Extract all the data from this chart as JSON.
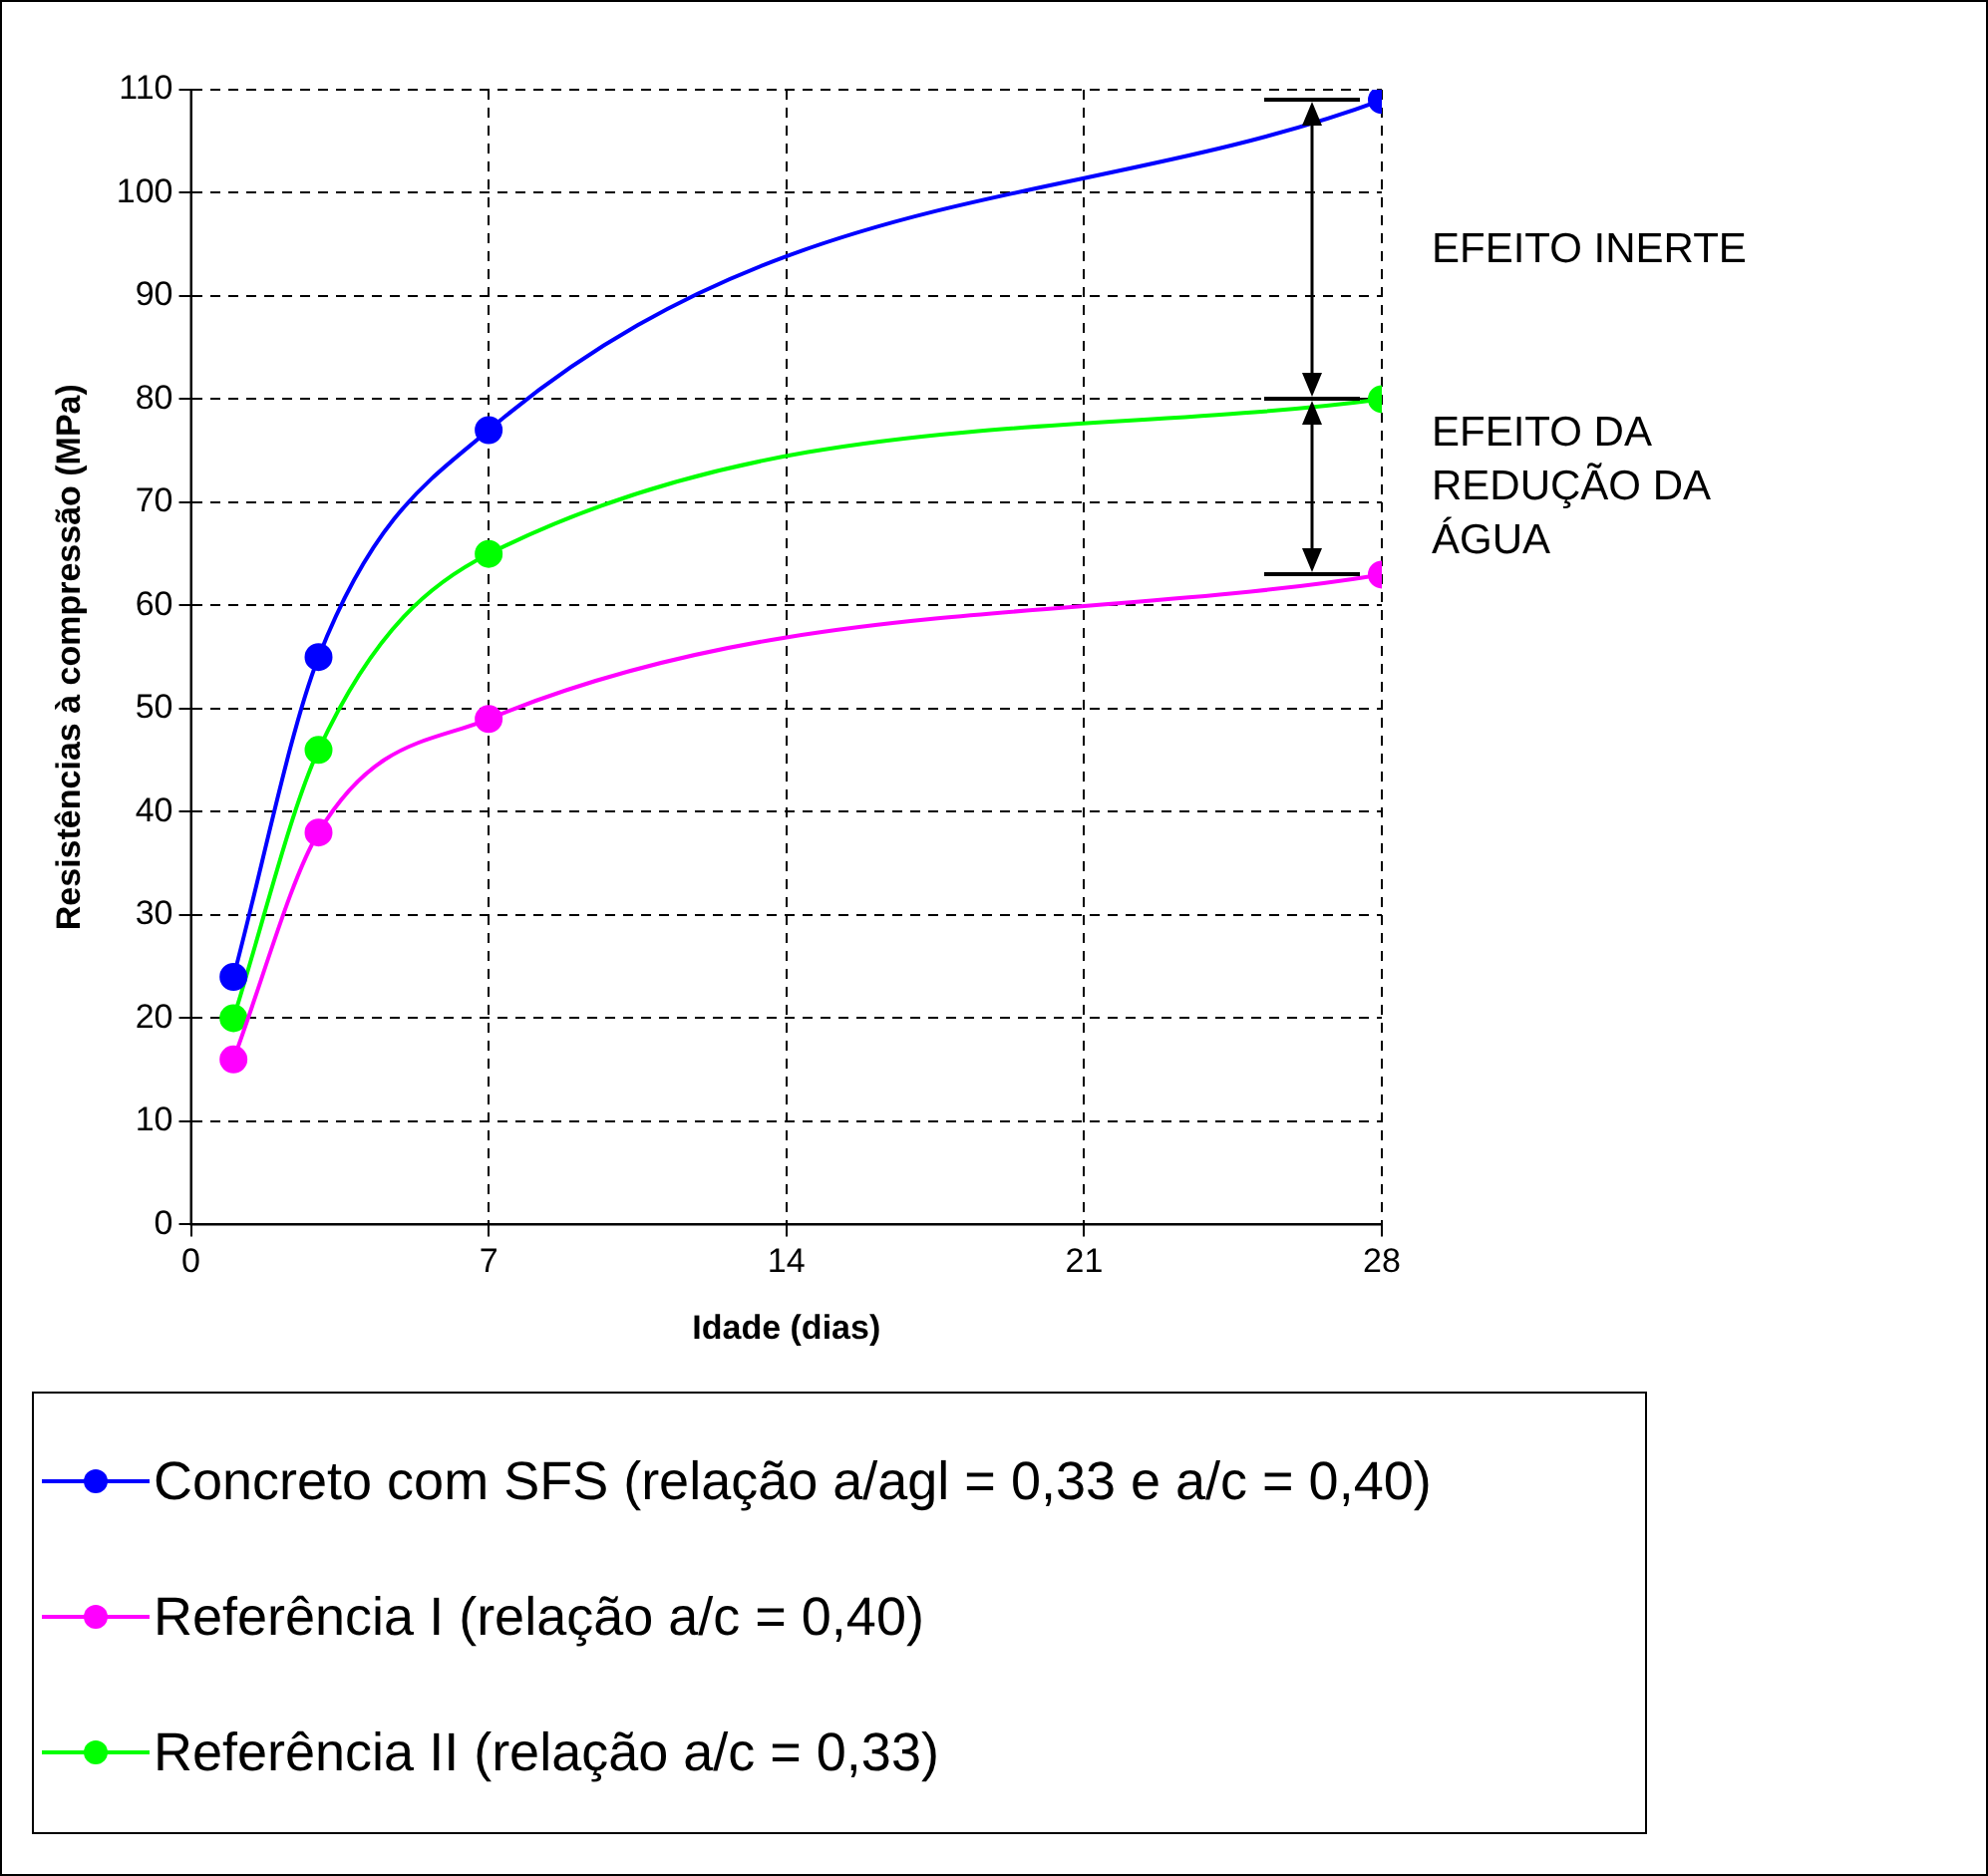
{
  "chart_data": {
    "type": "line",
    "xlabel": "Idade (dias)",
    "ylabel": "Resistências à compressão (MPa)",
    "xlim": [
      0,
      28
    ],
    "xticks": [
      0,
      7,
      14,
      21,
      28
    ],
    "ylim": [
      0,
      110
    ],
    "yticks": [
      0,
      10,
      20,
      30,
      40,
      50,
      60,
      70,
      80,
      90,
      100,
      110
    ],
    "grid": true,
    "legend": "bottom",
    "marker": "circle",
    "line_style": "solid",
    "series": [
      {
        "name": "Concreto com SFS (relação a/agl = 0,33 e a/c = 0,40)",
        "color": "#0000ff",
        "x": [
          1,
          3,
          7,
          28
        ],
        "values": [
          24,
          55,
          77,
          109
        ]
      },
      {
        "name": "Referência I (relação a/c = 0,40)",
        "color": "#ff00ff",
        "x": [
          1,
          3,
          7,
          28
        ],
        "values": [
          16,
          38,
          49,
          63
        ]
      },
      {
        "name": "Referência II (relação a/c = 0,33)",
        "color": "#00ff00",
        "x": [
          1,
          3,
          7,
          28
        ],
        "values": [
          20,
          46,
          65,
          80
        ]
      }
    ],
    "annotations": [
      "EFEITO INERTE",
      "EFEITO DA REDUÇÃO DA ÁGUA"
    ]
  }
}
